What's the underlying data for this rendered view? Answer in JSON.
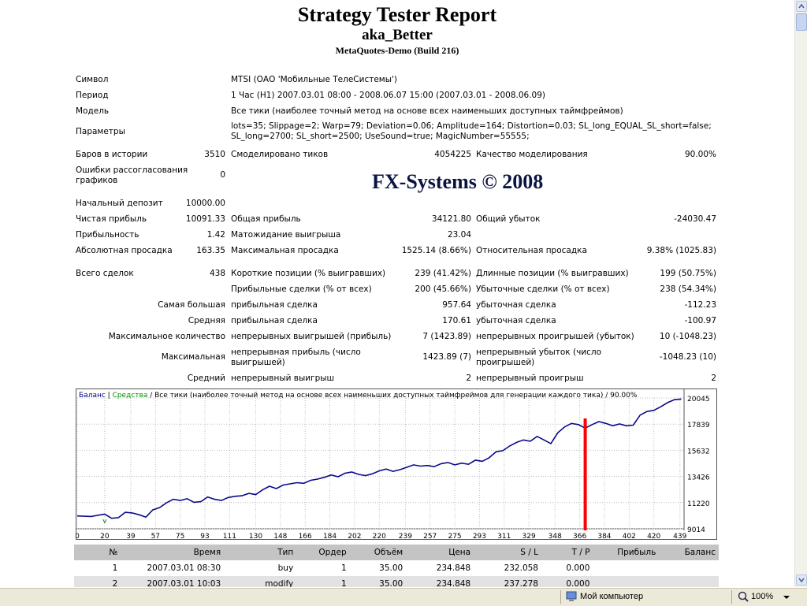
{
  "report": {
    "title": "Strategy Tester Report",
    "expert": "aka_Better",
    "server": "MetaQuotes-Demo (Build 216)",
    "watermark": "FX-Systems © 2008"
  },
  "settings": {
    "symbol_label": "Символ",
    "symbol_value": "MTSI (ОАО 'Мобильные ТелеСистемы')",
    "period_label": "Период",
    "period_value": "1 Час (H1) 2007.03.01 08:00 - 2008.06.07 15:00 (2007.03.01 - 2008.06.09)",
    "model_label": "Модель",
    "model_value": "Все тики (наиболее точный метод на основе всех наименьших доступных таймфреймов)",
    "params_label": "Параметры",
    "params_value": "lots=35; Slippage=2; Warp=79; Deviation=0.06; Amplitude=164; Distortion=0.03; SL_long_EQUAL_SL_short=false; SL_long=2700; SL_short=2500; UseSound=true; MagicNumber=55555;"
  },
  "stats": {
    "bars_label": "Баров в истории",
    "bars_value": "3510",
    "ticks_label": "Смоделировано тиков",
    "ticks_value": "4054225",
    "quality_label": "Качество моделирования",
    "quality_value": "90.00%",
    "mismatch_label": "Ошибки рассогласования графиков",
    "mismatch_value": "0",
    "deposit_label": "Начальный депозит",
    "deposit_value": "10000.00",
    "net_label": "Чистая прибыль",
    "net_value": "10091.33",
    "gross_profit_label": "Общая прибыль",
    "gross_profit_value": "34121.80",
    "gross_loss_label": "Общий убыток",
    "gross_loss_value": "-24030.47",
    "pf_label": "Прибыльность",
    "pf_value": "1.42",
    "expected_label": "Матожидание выигрыша",
    "expected_value": "23.04",
    "abs_dd_label": "Абсолютная просадка",
    "abs_dd_value": "163.35",
    "max_dd_label": "Максимальная просадка",
    "max_dd_value": "1525.14 (8.66%)",
    "rel_dd_label": "Относительная просадка",
    "rel_dd_value": "9.38% (1025.83)",
    "total_label": "Всего сделок",
    "total_value": "438",
    "short_label": "Короткие позиции (% выигравших)",
    "short_value": "239 (41.42%)",
    "long_label": "Длинные позиции (% выигравших)",
    "long_value": "199 (50.75%)",
    "profit_trades_label": "Прибыльные сделки (% от всех)",
    "profit_trades_value": "200 (45.66%)",
    "loss_trades_label": "Убыточные сделки (% от всех)",
    "loss_trades_value": "238 (54.34%)",
    "largest_label": "Самая большая",
    "largest_profit_label": "прибыльная сделка",
    "largest_profit_value": "957.64",
    "largest_loss_label": "убыточная сделка",
    "largest_loss_value": "-112.23",
    "average_label": "Средняя",
    "average_profit_label": "прибыльная сделка",
    "average_profit_value": "170.61",
    "average_loss_label": "убыточная сделка",
    "average_loss_value": "-100.97",
    "max_count_label": "Максимальное количество",
    "max_consec_wins_label": "непрерывных выигрышей (прибыль)",
    "max_consec_wins_value": "7 (1423.89)",
    "max_consec_losses_label": "непрерывных проигрышей (убыток)",
    "max_consec_losses_value": "10 (-1048.23)",
    "maximal_label": "Максимальная",
    "max_consec_profit_label": "непрерывная прибыль (число выигрышей)",
    "max_consec_profit_value": "1423.89 (7)",
    "max_consec_loss_label": "непрерывный убыток (число проигрышей)",
    "max_consec_loss_value": "-1048.23 (10)",
    "avg_label": "Средний",
    "avg_consec_wins_label": "непрерывный выигрыш",
    "avg_consec_wins_value": "2",
    "avg_consec_losses_label": "непрерывный проигрыш",
    "avg_consec_losses_value": "2"
  },
  "chart_data": {
    "type": "line",
    "legend_balance": "Баланс",
    "legend_equity": "Средства",
    "legend_rest": " / Все тики (наиболее точный метод на основе всех наименьших доступных таймфреймов для генерации каждого тика) / 90.00%",
    "x_ticks": [
      "0",
      "20",
      "39",
      "57",
      "75",
      "93",
      "111",
      "130",
      "148",
      "166",
      "184",
      "202",
      "220",
      "239",
      "257",
      "275",
      "293",
      "311",
      "329",
      "348",
      "366",
      "384",
      "402",
      "420",
      "439"
    ],
    "y_ticks": [
      "20045",
      "17839",
      "15632",
      "13426",
      "11220",
      "9014"
    ],
    "xlim": [
      0,
      442
    ],
    "ylim": [
      9014,
      20045
    ],
    "grid": true,
    "balance_color": "#0a0a8c",
    "equity_color": "#009000",
    "marker_color": "#ff0000",
    "marker_x": 370,
    "series": [
      {
        "name": "Баланс",
        "x": [
          0,
          10,
          20,
          25,
          30,
          35,
          40,
          45,
          50,
          55,
          60,
          65,
          70,
          75,
          80,
          85,
          90,
          95,
          100,
          105,
          110,
          115,
          120,
          125,
          130,
          135,
          140,
          145,
          150,
          155,
          160,
          165,
          170,
          175,
          180,
          185,
          190,
          195,
          200,
          205,
          210,
          215,
          220,
          225,
          230,
          235,
          240,
          245,
          250,
          255,
          260,
          265,
          270,
          275,
          280,
          285,
          290,
          295,
          300,
          305,
          310,
          315,
          320,
          325,
          330,
          335,
          340,
          345,
          350,
          355,
          360,
          365,
          370,
          375,
          380,
          385,
          390,
          395,
          400,
          405,
          410,
          415,
          420,
          425,
          430,
          435,
          440
        ],
        "y": [
          10100,
          10050,
          10250,
          9900,
          9950,
          10400,
          10350,
          10200,
          10000,
          10600,
          10800,
          11200,
          11500,
          11400,
          11550,
          11250,
          11300,
          11700,
          11500,
          11400,
          11650,
          11750,
          11800,
          12000,
          11900,
          12300,
          12600,
          12400,
          12700,
          12800,
          12900,
          12850,
          13100,
          13200,
          13350,
          13550,
          13400,
          13700,
          13800,
          13600,
          13500,
          13650,
          13900,
          14050,
          13850,
          14000,
          14200,
          14400,
          14300,
          14350,
          14250,
          14500,
          14600,
          14400,
          14550,
          14450,
          14800,
          14700,
          15000,
          15500,
          15600,
          16000,
          16300,
          16500,
          16400,
          16800,
          16500,
          16200,
          17100,
          17600,
          17900,
          17800,
          17500,
          17800,
          18050,
          17900,
          17700,
          17850,
          17700,
          17750,
          18600,
          18900,
          19000,
          19300,
          19650,
          19900,
          19950
        ]
      }
    ]
  },
  "trades_table": {
    "headers": [
      "№",
      "Время",
      "Тип",
      "Ордер",
      "Объём",
      "Цена",
      "S / L",
      "T / P",
      "Прибыль",
      "Баланс"
    ],
    "rows": [
      [
        "1",
        "2007.03.01 08:30",
        "buy",
        "1",
        "35.00",
        "234.848",
        "232.058",
        "0.000",
        "",
        ""
      ],
      [
        "2",
        "2007.03.01 10:03",
        "modify",
        "1",
        "35.00",
        "234.848",
        "237.278",
        "0.000",
        "",
        ""
      ]
    ]
  },
  "statusbar": {
    "computer_label": "Мой компьютер",
    "zoom_value": "100%"
  }
}
